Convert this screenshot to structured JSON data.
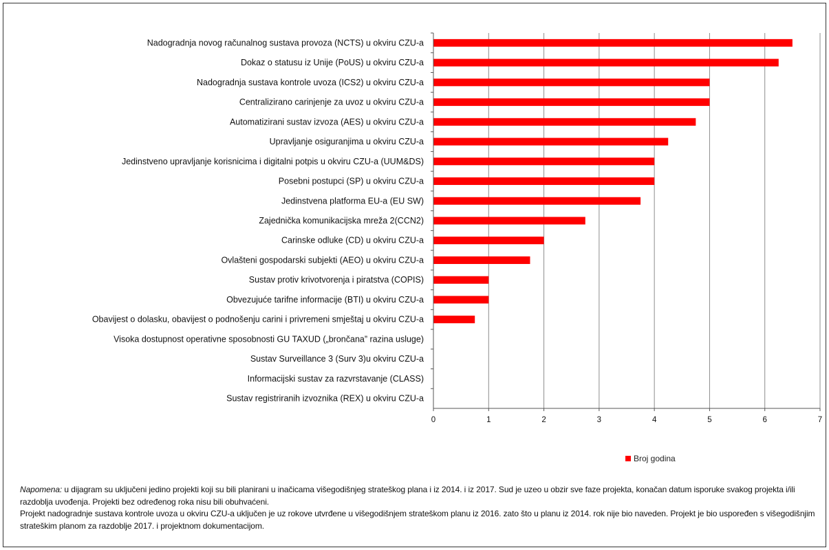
{
  "chart_data": {
    "type": "bar",
    "orientation": "horizontal",
    "categories": [
      "Nadogradnja novog računalnog sustava provoza (NCTS) u okviru CZU-a",
      "Dokaz o statusu iz Unije (PoUS) u okviru CZU-a",
      "Nadogradnja sustava kontrole uvoza (ICS2) u okviru CZU-a",
      "Centralizirano carinjenje za uvoz u okviru CZU-a",
      "Automatizirani sustav izvoza (AES) u okviru CZU-a",
      "Upravljanje osiguranjima u okviru CZU-a",
      "Jedinstveno upravljanje korisnicima i digitalni potpis u okviru CZU-a (UUM&DS)",
      "Posebni postupci (SP) u okviru CZU-a",
      "Jedinstvena platforma EU-a (EU SW)",
      "Zajednička komunikacijska mreža 2(CCN2)",
      "Carinske odluke (CD) u okviru CZU-a",
      "Ovlašteni gospodarski subjekti (AEO) u okviru CZU-a",
      "Sustav protiv krivotvorenja i piratstva (COPIS)",
      "Obvezujuće tarifne informacije (BTI) u okviru CZU-a",
      "Obavijest o dolasku, obavijest o podnošenju carini i privremeni smještaj u okviru CZU-a",
      "Visoka dostupnost operativne sposobnosti GU TAXUD („brončana” razina usluge)",
      "Sustav Surveillance 3 (Surv 3)u okviru CZU-a",
      "Informacijski sustav za razvrstavanje (CLASS)",
      "Sustav registriranih izvoznika (REX) u okviru CZU-a"
    ],
    "series": [
      {
        "name": "Broj godina",
        "color": "#ff0000",
        "values": [
          6.5,
          6.25,
          5,
          5,
          4.75,
          4.25,
          4,
          4,
          3.75,
          2.75,
          2,
          1.75,
          1,
          1,
          0.75,
          0,
          0,
          0,
          0
        ]
      }
    ],
    "xlim": [
      0,
      7
    ],
    "x_ticks": [
      "0",
      "1",
      "2",
      "3",
      "4",
      "5",
      "6",
      "7"
    ],
    "grid": "vertical",
    "legend_position": "bottom-center"
  },
  "legend": {
    "label": "Broj godina",
    "color": "#ff0000"
  },
  "notes": {
    "label": "Napomena:",
    "text1": " u dijagram su uključeni jedino projekti koji su bili planirani u inačicama višegodišnjeg strateškog plana i iz 2014. i iz 2017. Sud je uzeo u obzir sve faze projekta, konačan datum isporuke svakog projekta i/ili razdoblja uvođenja. Projekti bez određenog roka nisu bili obuhvaćeni.",
    "text2": "Projekt nadogradnje sustava kontrole uvoza u okviru CZU-a uključen je uz rokove utvrđene u višegodišnjem strateškom planu iz 2016. zato što u planu iz 2014. rok nije bio naveden. Projekt je bio uspoređen s višegodišnjim strateškim planom za razdoblje 2017. i projektnom dokumentacijom."
  }
}
